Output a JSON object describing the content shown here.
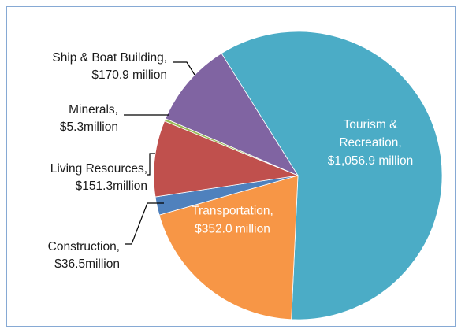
{
  "chart_data": {
    "type": "pie",
    "title": "",
    "units": "million",
    "slices": [
      {
        "category": "Tourism & Recreation",
        "value": 1056.9,
        "label_lines": [
          "Tourism &",
          "Recreation,",
          "$1,056.9 million"
        ],
        "color": "#4bacc6",
        "label_color": "light"
      },
      {
        "category": "Transportation",
        "value": 352.0,
        "label_lines": [
          "Transportation,",
          "$352.0 million"
        ],
        "color": "#f79646",
        "label_color": "light"
      },
      {
        "category": "Construction",
        "value": 36.5,
        "label_lines": [
          "Construction,",
          "$36.5million"
        ],
        "color": "#4f81bd",
        "label_color": "dark"
      },
      {
        "category": "Living Resources",
        "value": 151.3,
        "label_lines": [
          "Living Resources,",
          "$151.3million"
        ],
        "color": "#c0504d",
        "label_color": "dark"
      },
      {
        "category": "Minerals",
        "value": 5.3,
        "label_lines": [
          "Minerals,",
          "$5.3million"
        ],
        "color": "#9bbb59",
        "label_color": "dark"
      },
      {
        "category": "Ship & Boat Building",
        "value": 170.9,
        "label_lines": [
          "Ship & Boat Building,",
          "$170.9 million"
        ],
        "color": "#8064a2",
        "label_color": "dark"
      }
    ]
  }
}
